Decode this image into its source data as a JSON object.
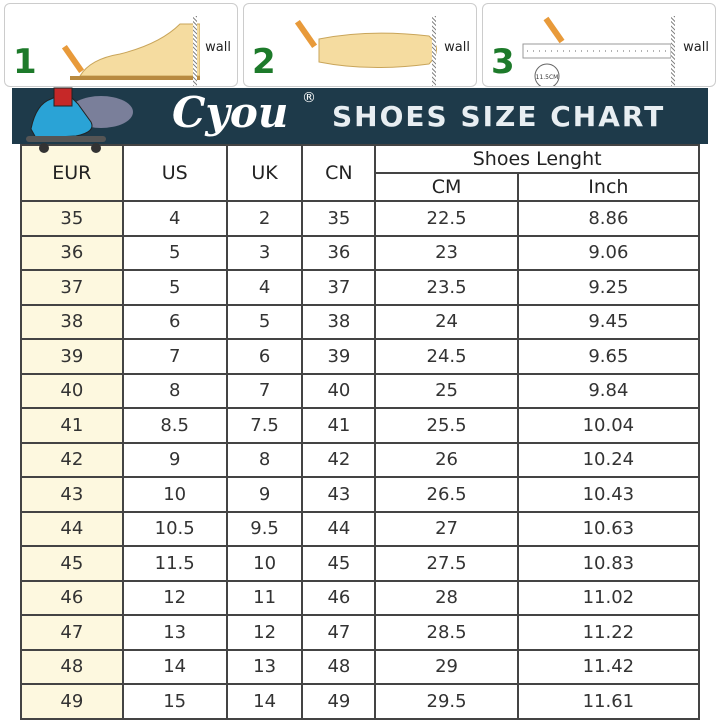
{
  "steps": [
    {
      "number": "1",
      "label": "wall"
    },
    {
      "number": "2",
      "label": "wall"
    },
    {
      "number": "3",
      "label": "wall",
      "measure": "11.5CM"
    }
  ],
  "banner": {
    "brand": "Cyou",
    "registered": "®",
    "title": "SHOES SIZE CHART"
  },
  "table": {
    "headers": {
      "eur": "EUR",
      "us": "US",
      "uk": "UK",
      "cn": "CN",
      "length": "Shoes Lenght",
      "cm": "CM",
      "inch": "Inch"
    },
    "rows": [
      [
        "35",
        "4",
        "2",
        "35",
        "22.5",
        "8.86"
      ],
      [
        "36",
        "5",
        "3",
        "36",
        "23",
        "9.06"
      ],
      [
        "37",
        "5",
        "4",
        "37",
        "23.5",
        "9.25"
      ],
      [
        "38",
        "6",
        "5",
        "38",
        "24",
        "9.45"
      ],
      [
        "39",
        "7",
        "6",
        "39",
        "24.5",
        "9.65"
      ],
      [
        "40",
        "8",
        "7",
        "40",
        "25",
        "9.84"
      ],
      [
        "41",
        "8.5",
        "7.5",
        "41",
        "25.5",
        "10.04"
      ],
      [
        "42",
        "9",
        "8",
        "42",
        "26",
        "10.24"
      ],
      [
        "43",
        "10",
        "9",
        "43",
        "26.5",
        "10.43"
      ],
      [
        "44",
        "10.5",
        "9.5",
        "44",
        "27",
        "10.63"
      ],
      [
        "45",
        "11.5",
        "10",
        "45",
        "27.5",
        "10.83"
      ],
      [
        "46",
        "12",
        "11",
        "46",
        "28",
        "11.02"
      ],
      [
        "47",
        "13",
        "12",
        "47",
        "28.5",
        "11.22"
      ],
      [
        "48",
        "14",
        "13",
        "48",
        "29",
        "11.42"
      ],
      [
        "49",
        "15",
        "14",
        "49",
        "29.5",
        "11.61"
      ]
    ]
  },
  "colors": {
    "banner": "#1e3a4a",
    "eur_column": "#fdf8df",
    "step_number": "#1d7a2a"
  }
}
